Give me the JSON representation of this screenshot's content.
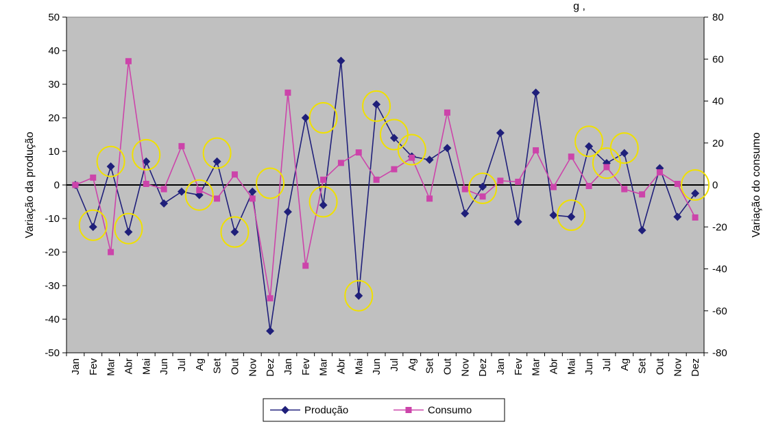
{
  "chart_data": {
    "type": "line",
    "title": "g     ,",
    "ylabel": "Variação da produção",
    "y2label": "Variação do consumo",
    "ylim": [
      -50,
      50
    ],
    "y2lim": [
      -80,
      80
    ],
    "yticks": [
      -50,
      -40,
      -30,
      -20,
      -10,
      0,
      10,
      20,
      30,
      40,
      50
    ],
    "y2ticks": [
      -80,
      -60,
      -40,
      -20,
      0,
      20,
      40,
      60,
      80
    ],
    "categories": [
      "Jan",
      "Fev",
      "Mar",
      "Abr",
      "Mai",
      "Jun",
      "Jul",
      "Ag",
      "Set",
      "Out",
      "Nov",
      "Dez",
      "Jan",
      "Fev",
      "Mar",
      "Abr",
      "Mai",
      "Jun",
      "Jul",
      "Ag",
      "Set",
      "Out",
      "Nov",
      "Dez",
      "Jan",
      "Fev",
      "Mar",
      "Abr",
      "Mai",
      "Jun",
      "Jul",
      "Ag",
      "Set",
      "Out",
      "Nov",
      "Dez"
    ],
    "series": [
      {
        "name": "Produção",
        "axis": "left",
        "color": "#1f1f7a",
        "marker": "diamond",
        "values": [
          0,
          -12.5,
          5.5,
          -14,
          7,
          -5.5,
          -2,
          -3,
          7,
          -14,
          -2,
          -43.5,
          -8,
          20,
          -6,
          37,
          -33,
          24,
          14,
          8.5,
          7.5,
          11,
          -8.5,
          -0.5,
          15.5,
          -11,
          27.5,
          -9,
          -9.5,
          11.5,
          6.5,
          9.5,
          -13.5,
          5,
          -9.5,
          -2.5
        ]
      },
      {
        "name": "Consumo",
        "axis": "right",
        "color": "#cc44aa",
        "marker": "square",
        "values": [
          0,
          3.5,
          -32,
          59,
          0.5,
          -2,
          18.5,
          -2.5,
          -6.5,
          5,
          -6.5,
          -54,
          44,
          -38.5,
          2.5,
          10.5,
          15.5,
          2.5,
          7.5,
          13,
          -6.5,
          34.5,
          -2,
          -5.5,
          2,
          1.5,
          16.5,
          -1,
          13.5,
          -0.5,
          8.5,
          -2,
          -4.5,
          6,
          0.5,
          -15.5
        ]
      }
    ],
    "highlights": [
      {
        "category_index": 1,
        "axis": "left",
        "value": -12
      },
      {
        "category_index": 2,
        "axis": "left",
        "value": 7
      },
      {
        "category_index": 3,
        "axis": "left",
        "value": -13
      },
      {
        "category_index": 4,
        "axis": "left",
        "value": 9
      },
      {
        "category_index": 7,
        "axis": "left",
        "value": -3
      },
      {
        "category_index": 9,
        "axis": "left",
        "value": -14
      },
      {
        "category_index": 8,
        "axis": "left",
        "value": 9.5
      },
      {
        "category_index": 11,
        "axis": "left",
        "value": 0.5
      },
      {
        "category_index": 14,
        "axis": "left",
        "value": 20
      },
      {
        "category_index": 14,
        "axis": "left",
        "value": -5
      },
      {
        "category_index": 16,
        "axis": "left",
        "value": -33
      },
      {
        "category_index": 17,
        "axis": "left",
        "value": 23.5
      },
      {
        "category_index": 18,
        "axis": "left",
        "value": 15
      },
      {
        "category_index": 19,
        "axis": "left",
        "value": 10.5
      },
      {
        "category_index": 23,
        "axis": "left",
        "value": -1
      },
      {
        "category_index": 28,
        "axis": "left",
        "value": -9
      },
      {
        "category_index": 29,
        "axis": "left",
        "value": 13
      },
      {
        "category_index": 30,
        "axis": "left",
        "value": 6.5
      },
      {
        "category_index": 31,
        "axis": "left",
        "value": 11
      },
      {
        "category_index": 35,
        "axis": "left",
        "value": 0
      }
    ],
    "highlight_color": "#f0e000",
    "plot_background": "#c0c0c0",
    "legend_position": "bottom",
    "grid": false
  }
}
